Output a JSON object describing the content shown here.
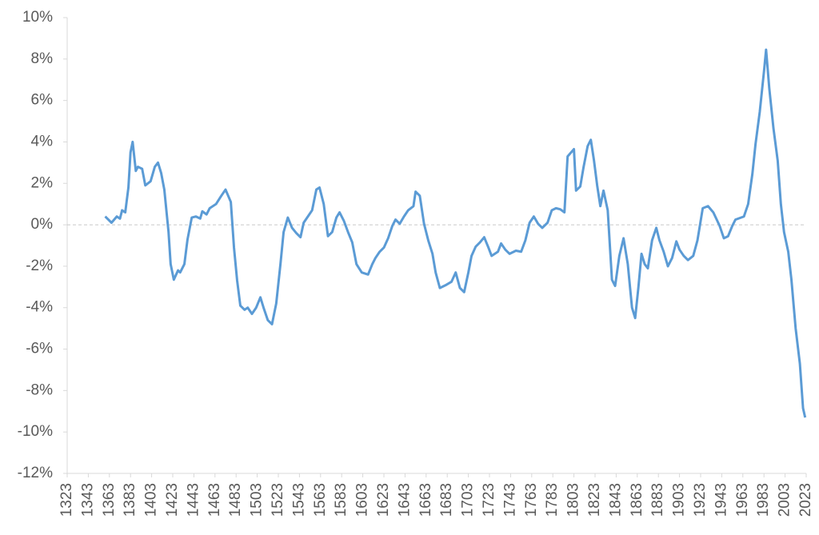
{
  "chart_data": {
    "type": "line",
    "x": [
      1359,
      1365,
      1370,
      1373,
      1375,
      1378,
      1381,
      1383,
      1385,
      1388,
      1390,
      1394,
      1397,
      1402,
      1406,
      1409,
      1412,
      1415,
      1419,
      1421,
      1424,
      1428,
      1430,
      1434,
      1437,
      1441,
      1445,
      1449,
      1451,
      1455,
      1458,
      1464,
      1469,
      1473,
      1478,
      1481,
      1484,
      1487,
      1491,
      1494,
      1498,
      1502,
      1506,
      1509,
      1513,
      1517,
      1521,
      1525,
      1528,
      1532,
      1536,
      1540,
      1544,
      1547,
      1551,
      1555,
      1559,
      1562,
      1566,
      1570,
      1574,
      1578,
      1581,
      1585,
      1589,
      1593,
      1597,
      1602,
      1608,
      1612,
      1615,
      1619,
      1623,
      1627,
      1631,
      1634,
      1638,
      1642,
      1646,
      1651,
      1653,
      1657,
      1661,
      1665,
      1669,
      1672,
      1676,
      1682,
      1687,
      1691,
      1695,
      1699,
      1703,
      1706,
      1710,
      1714,
      1718,
      1722,
      1725,
      1731,
      1734,
      1738,
      1742,
      1748,
      1753,
      1757,
      1761,
      1765,
      1769,
      1773,
      1778,
      1782,
      1786,
      1790,
      1794,
      1797,
      1803,
      1805,
      1809,
      1812,
      1816,
      1819,
      1822,
      1825,
      1828,
      1831,
      1835,
      1839,
      1842,
      1846,
      1850,
      1854,
      1858,
      1861,
      1864,
      1867,
      1870,
      1873,
      1877,
      1881,
      1884,
      1888,
      1892,
      1896,
      1900,
      1903,
      1907,
      1911,
      1916,
      1920,
      1925,
      1930,
      1935,
      1941,
      1945,
      1949,
      1953,
      1956,
      1964,
      1968,
      1972,
      1975,
      1979,
      1983,
      1985,
      1988,
      1992,
      1996,
      1999,
      2002,
      2006,
      2009,
      2013,
      2017,
      2020,
      2022
    ],
    "series": [
      {
        "color": "#5b9bd5",
        "values": [
          0.4,
          0.1,
          0.4,
          0.3,
          0.7,
          0.6,
          1.8,
          3.5,
          4.0,
          2.6,
          2.8,
          2.7,
          1.9,
          2.1,
          2.8,
          3.0,
          2.5,
          1.7,
          -0.35,
          -1.9,
          -2.65,
          -2.2,
          -2.3,
          -1.9,
          -0.7,
          0.35,
          0.4,
          0.3,
          0.65,
          0.5,
          0.8,
          1.0,
          1.4,
          1.7,
          1.1,
          -1.1,
          -2.7,
          -3.9,
          -4.1,
          -4.0,
          -4.3,
          -4.0,
          -3.5,
          -4.0,
          -4.6,
          -4.8,
          -3.8,
          -1.9,
          -0.35,
          0.35,
          -0.15,
          -0.4,
          -0.6,
          0.1,
          0.4,
          0.7,
          1.7,
          1.8,
          1.0,
          -0.55,
          -0.35,
          0.35,
          0.6,
          0.2,
          -0.35,
          -0.85,
          -1.9,
          -2.3,
          -2.4,
          -1.9,
          -1.6,
          -1.3,
          -1.1,
          -0.65,
          -0.05,
          0.25,
          0.05,
          0.4,
          0.7,
          0.9,
          1.6,
          1.4,
          0.05,
          -0.75,
          -1.4,
          -2.3,
          -3.05,
          -2.9,
          -2.75,
          -2.3,
          -3.05,
          -3.25,
          -2.3,
          -1.5,
          -1.05,
          -0.85,
          -0.6,
          -1.1,
          -1.5,
          -1.3,
          -0.9,
          -1.2,
          -1.4,
          -1.25,
          -1.3,
          -0.75,
          0.1,
          0.4,
          0.05,
          -0.15,
          0.1,
          0.7,
          0.8,
          0.75,
          0.6,
          3.3,
          3.65,
          1.65,
          1.85,
          2.75,
          3.8,
          4.1,
          3.1,
          1.9,
          0.9,
          1.65,
          0.7,
          -2.65,
          -2.95,
          -1.5,
          -0.65,
          -1.9,
          -4.0,
          -4.5,
          -3.05,
          -1.4,
          -1.9,
          -2.1,
          -0.75,
          -0.15,
          -0.75,
          -1.3,
          -2.0,
          -1.6,
          -0.8,
          -1.2,
          -1.5,
          -1.7,
          -1.5,
          -0.75,
          0.8,
          0.9,
          0.6,
          -0.05,
          -0.65,
          -0.55,
          -0.05,
          0.25,
          0.4,
          1.0,
          2.45,
          3.9,
          5.45,
          7.4,
          8.45,
          6.6,
          4.65,
          3.1,
          1.0,
          -0.35,
          -1.3,
          -2.65,
          -5.0,
          -6.7,
          -8.85,
          -9.3
        ]
      }
    ],
    "xlim": [
      1323,
      2023
    ],
    "xticks": [
      1323,
      1343,
      1363,
      1383,
      1403,
      1423,
      1443,
      1463,
      1483,
      1503,
      1523,
      1543,
      1563,
      1583,
      1603,
      1623,
      1643,
      1663,
      1683,
      1703,
      1723,
      1743,
      1763,
      1783,
      1803,
      1823,
      1843,
      1863,
      1883,
      1903,
      1923,
      1943,
      1963,
      1983,
      2003,
      2023
    ],
    "ylim": [
      -12,
      10
    ],
    "yticks": [
      {
        "value": -12,
        "label": "-12%"
      },
      {
        "value": -10,
        "label": "-10%"
      },
      {
        "value": -8,
        "label": "-8%"
      },
      {
        "value": -6,
        "label": "-6%"
      },
      {
        "value": -4,
        "label": "-4%"
      },
      {
        "value": -2,
        "label": "-2%"
      },
      {
        "value": 0,
        "label": "0%"
      },
      {
        "value": 2,
        "label": "2%"
      },
      {
        "value": 4,
        "label": "4%"
      },
      {
        "value": 6,
        "label": "6%"
      },
      {
        "value": 8,
        "label": "8%"
      },
      {
        "value": 10,
        "label": "10%"
      }
    ]
  }
}
